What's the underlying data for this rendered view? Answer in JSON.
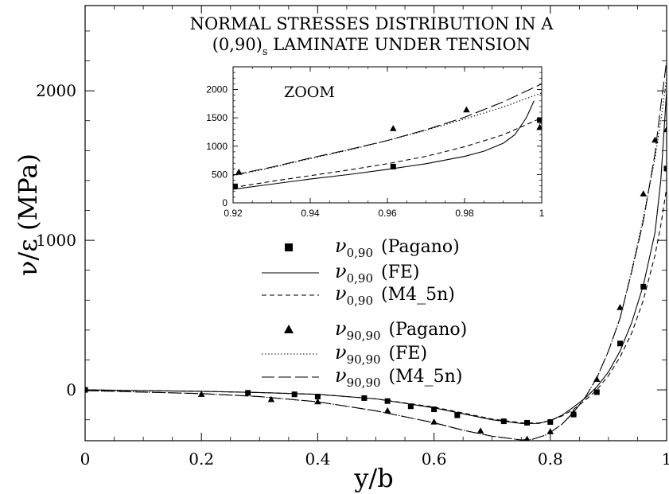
{
  "chart_data": [
    {
      "type": "line",
      "title_line1": "NORMAL STRESSES DISTRIBUTION IN A",
      "title_line2_pre": "(0,90)",
      "title_line2_sub": "s",
      "title_line2_post": " LAMINATE UNDER TENSION",
      "xlabel": "y/b",
      "ylabel": "ν/ε (MPa)",
      "xlim": [
        0,
        1.0
      ],
      "ylim": [
        -340,
        2570
      ],
      "x_ticks": [
        {
          "value": 0,
          "label": "0"
        },
        {
          "value": 0.2,
          "label": "0.2"
        },
        {
          "value": 0.4,
          "label": "0.4"
        },
        {
          "value": 0.6,
          "label": "0.6"
        },
        {
          "value": 0.8,
          "label": "0.8"
        },
        {
          "value": 1.0,
          "label": "1"
        }
      ],
      "y_ticks": [
        {
          "value": 0,
          "label": "0"
        },
        {
          "value": 1000,
          "label": "1000"
        },
        {
          "value": 2000,
          "label": "2000"
        }
      ],
      "grid": false,
      "legend_position": "center",
      "legend": [
        {
          "symbol": "square",
          "name": "ν",
          "sub": "0,90",
          "source": "(Pagano)"
        },
        {
          "symbol": "solid",
          "name": "ν",
          "sub": "0,90",
          "source": "(FE)"
        },
        {
          "symbol": "dashed",
          "name": "ν",
          "sub": "0,90",
          "source": "(M4_5n)"
        },
        {
          "symbol": "triangle",
          "name": "ν",
          "sub": "90,90",
          "source": "(Pagano)"
        },
        {
          "symbol": "dotted",
          "name": "ν",
          "sub": "90,90",
          "source": "(FE)"
        },
        {
          "symbol": "longdash",
          "name": "ν",
          "sub": "90,90",
          "source": "(M4_5n)"
        }
      ],
      "series": [
        {
          "style": "solid",
          "x": [
            0,
            0.1,
            0.2,
            0.3,
            0.4,
            0.5,
            0.6,
            0.65,
            0.7,
            0.75,
            0.78,
            0.8,
            0.82,
            0.84,
            0.86,
            0.88,
            0.9,
            0.92,
            0.94,
            0.96,
            0.98,
            0.99,
            1.0
          ],
          "y": [
            0,
            -5,
            -10,
            -18,
            -30,
            -60,
            -120,
            -160,
            -200,
            -225,
            -225,
            -205,
            -170,
            -115,
            -55,
            20,
            120,
            260,
            450,
            700,
            1050,
            1400,
            2000
          ]
        },
        {
          "style": "dashed",
          "x": [
            0,
            0.1,
            0.2,
            0.3,
            0.4,
            0.5,
            0.6,
            0.65,
            0.7,
            0.75,
            0.78,
            0.8,
            0.82,
            0.84,
            0.86,
            0.88,
            0.9,
            0.92,
            0.94,
            0.96,
            0.98,
            0.99,
            1.0
          ],
          "y": [
            0,
            -5,
            -10,
            -18,
            -30,
            -60,
            -115,
            -155,
            -195,
            -220,
            -222,
            -205,
            -175,
            -130,
            -70,
            0,
            95,
            220,
            380,
            600,
            900,
            1100,
            1350
          ]
        },
        {
          "style": "dotted",
          "x": [
            0,
            0.1,
            0.2,
            0.3,
            0.4,
            0.5,
            0.6,
            0.65,
            0.7,
            0.75,
            0.77,
            0.79,
            0.8,
            0.82,
            0.84,
            0.86,
            0.88,
            0.9,
            0.92,
            0.94,
            0.96,
            0.98,
            0.99,
            1.0
          ],
          "y": [
            -5,
            -15,
            -25,
            -45,
            -80,
            -140,
            -220,
            -270,
            -310,
            -335,
            -330,
            -305,
            -285,
            -230,
            -150,
            -50,
            80,
            260,
            480,
            800,
            1150,
            1550,
            1800,
            2080
          ]
        },
        {
          "style": "longdash",
          "x": [
            0,
            0.1,
            0.2,
            0.3,
            0.4,
            0.5,
            0.6,
            0.65,
            0.7,
            0.75,
            0.77,
            0.79,
            0.8,
            0.82,
            0.84,
            0.86,
            0.88,
            0.9,
            0.92,
            0.94,
            0.96,
            0.98,
            0.99,
            1.0
          ],
          "y": [
            -5,
            -15,
            -25,
            -45,
            -80,
            -140,
            -220,
            -270,
            -310,
            -335,
            -330,
            -305,
            -285,
            -230,
            -150,
            -50,
            80,
            260,
            480,
            790,
            1130,
            1580,
            1900,
            2200
          ]
        },
        {
          "style": "marker-square",
          "x": [
            0,
            0.28,
            0.36,
            0.4,
            0.48,
            0.52,
            0.56,
            0.6,
            0.64,
            0.72,
            0.76,
            0.8,
            0.84,
            0.88,
            0.92,
            0.96,
            1.0
          ],
          "y": [
            0,
            -20,
            -30,
            -45,
            -55,
            -75,
            -110,
            -130,
            -170,
            -210,
            -220,
            -215,
            -165,
            -15,
            310,
            690,
            1480
          ]
        },
        {
          "style": "marker-triangle",
          "x": [
            0.2,
            0.32,
            0.4,
            0.52,
            0.6,
            0.68,
            0.76,
            0.8,
            0.84,
            0.88,
            0.92,
            0.96,
            0.98,
            1.0
          ],
          "y": [
            -30,
            -65,
            -80,
            -140,
            -215,
            -275,
            -330,
            -280,
            -155,
            70,
            550,
            1310,
            1670,
            1740
          ]
        }
      ]
    },
    {
      "type": "line",
      "title": "ZOOM",
      "xlim": [
        0.92,
        1.0
      ],
      "ylim": [
        0,
        2400
      ],
      "x_ticks": [
        {
          "value": 0.92,
          "label": "0.92"
        },
        {
          "value": 0.94,
          "label": "0.94"
        },
        {
          "value": 0.96,
          "label": "0.96"
        },
        {
          "value": 0.98,
          "label": "0.98"
        },
        {
          "value": 1.0,
          "label": "1"
        }
      ],
      "y_ticks": [
        {
          "value": 0,
          "label": "0"
        },
        {
          "value": 500,
          "label": "500"
        },
        {
          "value": 1000,
          "label": "1000"
        },
        {
          "value": 1500,
          "label": "1500"
        },
        {
          "value": 2000,
          "label": "2000"
        }
      ],
      "series": [
        {
          "style": "solid",
          "x": [
            0.92,
            0.93,
            0.94,
            0.95,
            0.96,
            0.97,
            0.98,
            0.985,
            0.99,
            0.993,
            0.996,
            0.998
          ],
          "y": [
            240,
            330,
            420,
            500,
            590,
            690,
            820,
            910,
            1050,
            1200,
            1500,
            1800
          ]
        },
        {
          "style": "dashed",
          "x": [
            0.92,
            0.93,
            0.94,
            0.95,
            0.96,
            0.97,
            0.98,
            0.99,
            1.0
          ],
          "y": [
            270,
            380,
            480,
            580,
            690,
            820,
            990,
            1200,
            1500
          ]
        },
        {
          "style": "dotted",
          "x": [
            0.92,
            0.93,
            0.94,
            0.95,
            0.96,
            0.97,
            0.98,
            0.99,
            1.0
          ],
          "y": [
            480,
            620,
            780,
            930,
            1100,
            1280,
            1480,
            1690,
            1940
          ]
        },
        {
          "style": "longdash",
          "x": [
            0.92,
            0.93,
            0.94,
            0.95,
            0.96,
            0.97,
            0.98,
            0.99,
            1.0
          ],
          "y": [
            490,
            630,
            790,
            940,
            1100,
            1290,
            1510,
            1780,
            2100
          ]
        },
        {
          "style": "marker-square",
          "x": [
            0.9205,
            0.9615,
            0.9995
          ],
          "y": [
            290,
            640,
            1460
          ]
        },
        {
          "style": "marker-triangle",
          "x": [
            0.9215,
            0.9615,
            0.9805,
            0.9995
          ],
          "y": [
            540,
            1310,
            1640,
            1330
          ]
        }
      ]
    }
  ]
}
